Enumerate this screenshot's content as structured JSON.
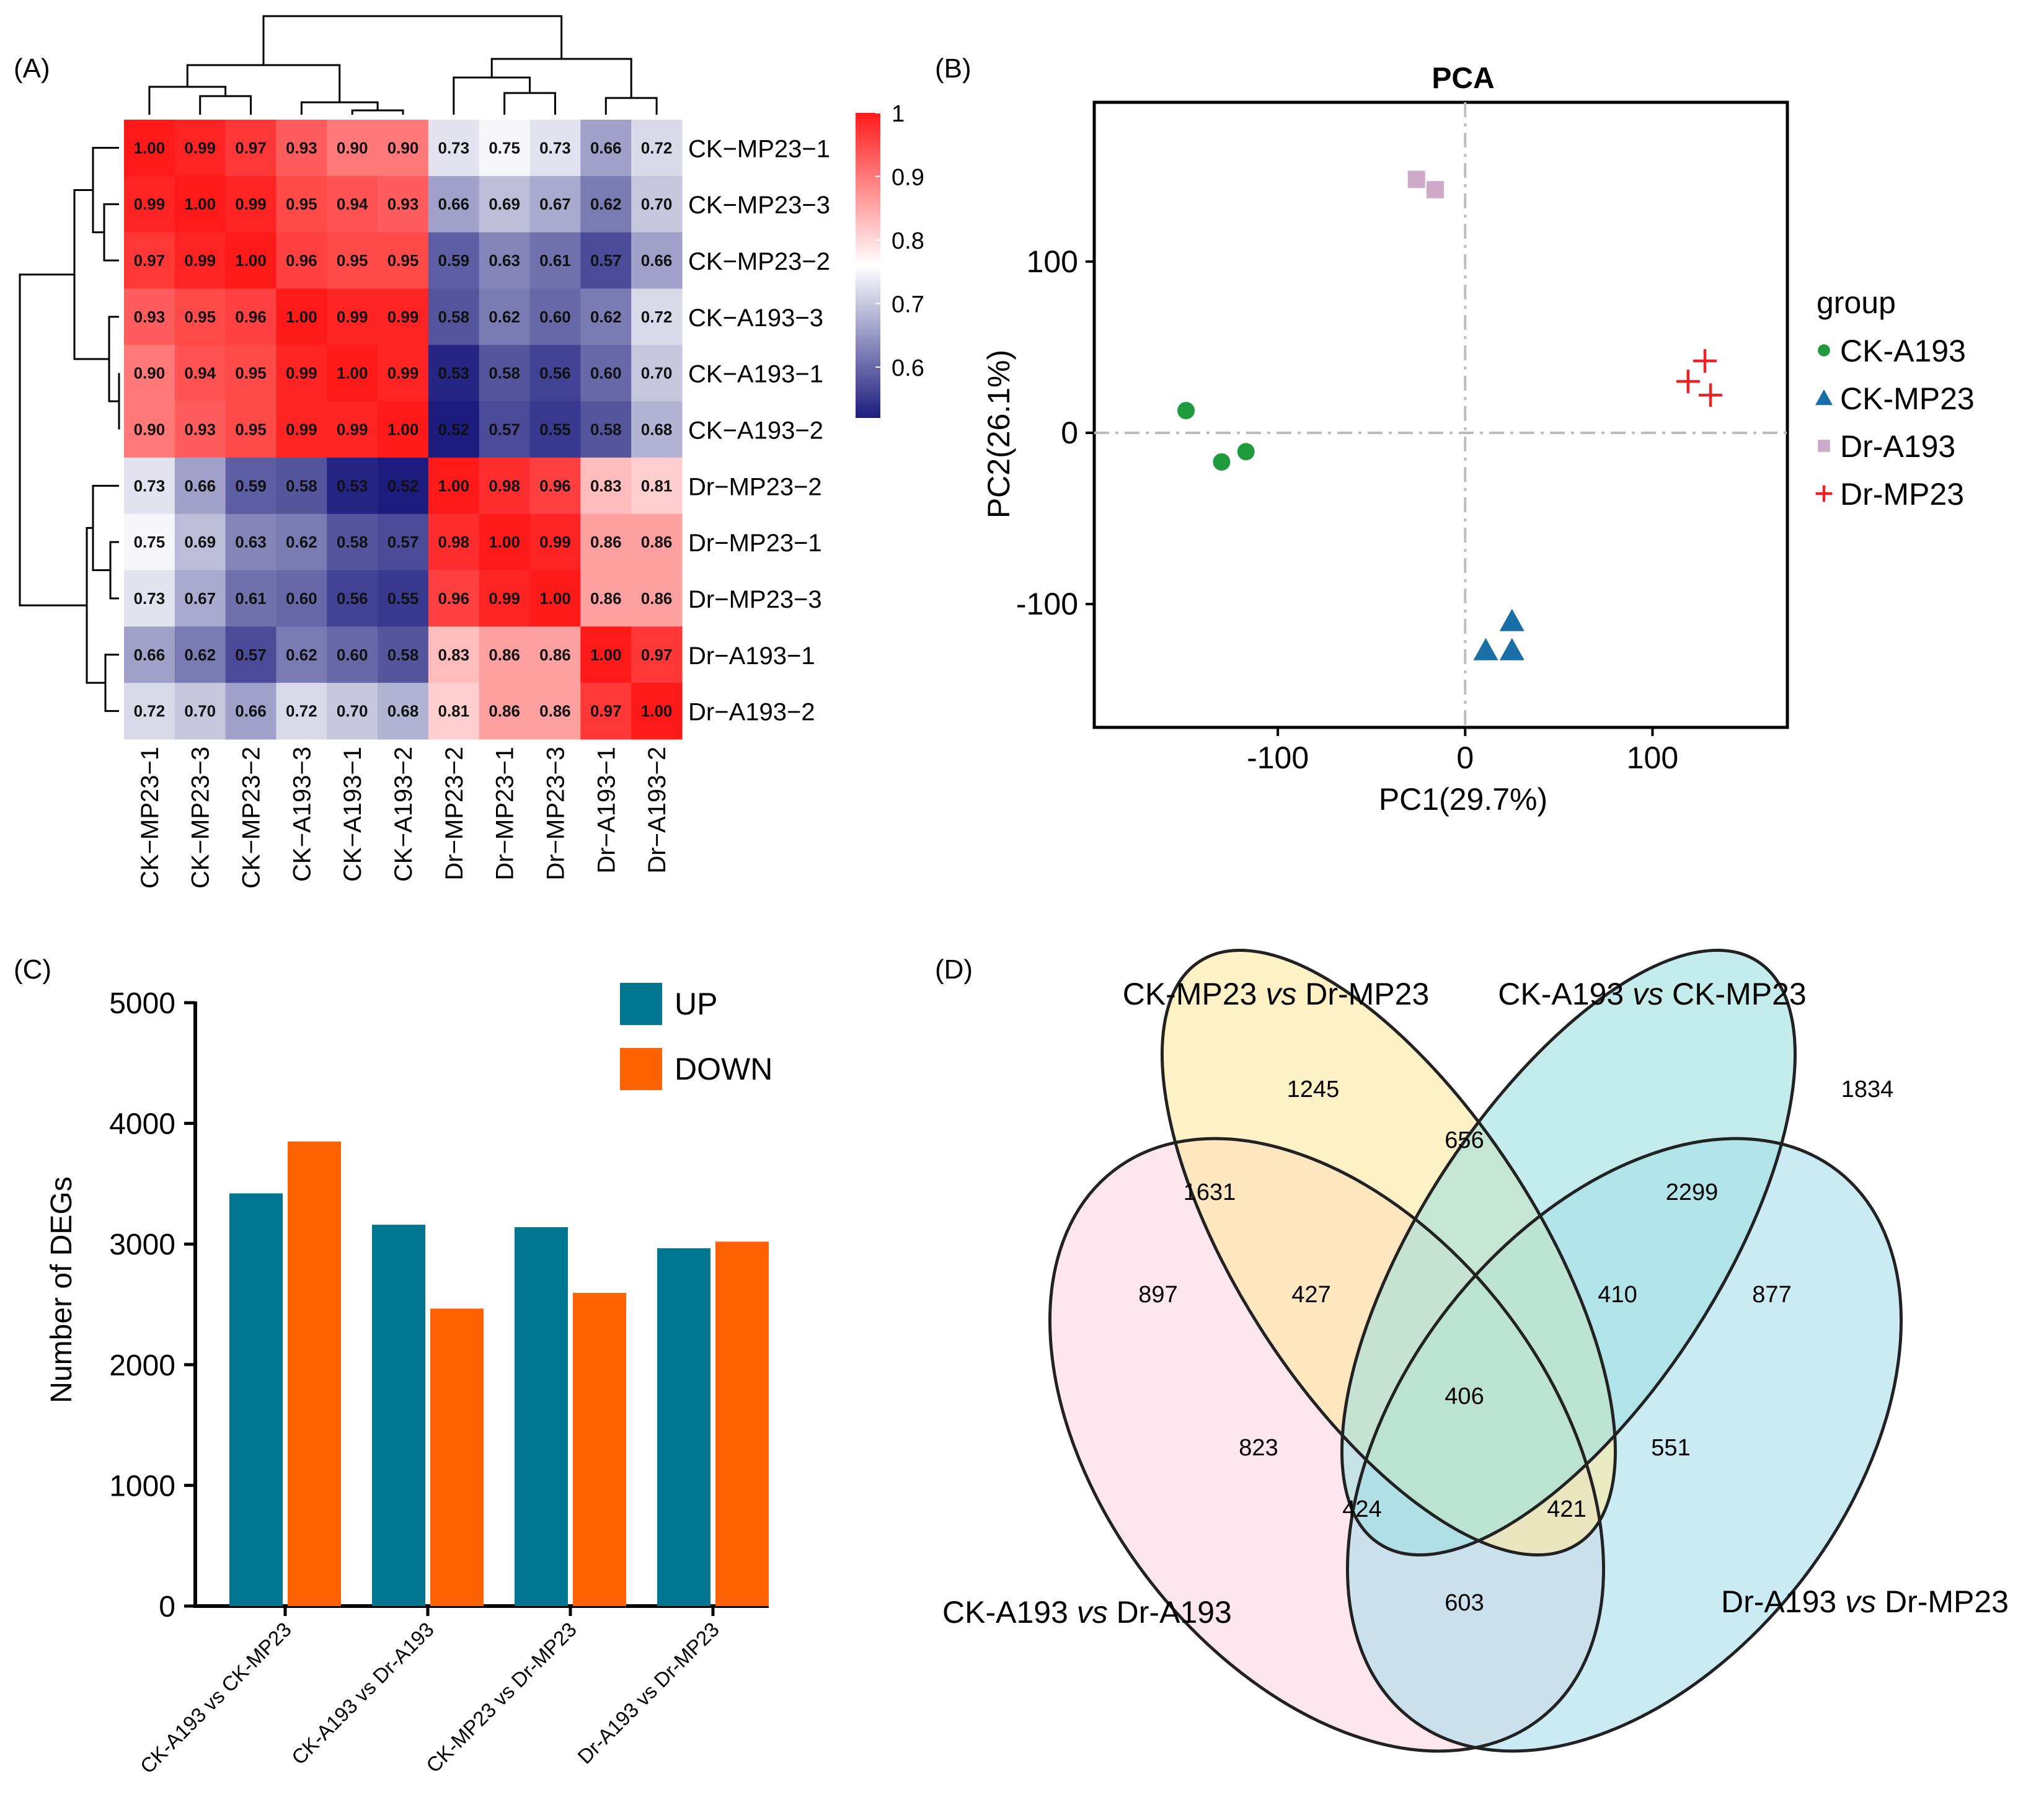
{
  "panel_labels": {
    "a": "(A)",
    "b": "(B)",
    "c": "(C)",
    "d": "(D)"
  },
  "chart_data": [
    {
      "type": "heatmap",
      "panel": "(A)",
      "title": "",
      "rows": [
        "CK−MP23−1",
        "CK−MP23−3",
        "CK−MP23−2",
        "CK−A193−3",
        "CK−A193−1",
        "CK−A193−2",
        "Dr−MP23−2",
        "Dr−MP23−1",
        "Dr−MP23−3",
        "Dr−A193−1",
        "Dr−A193−2"
      ],
      "cols": [
        "CK−MP23−1",
        "CK−MP23−3",
        "CK−MP23−2",
        "CK−A193−3",
        "CK−A193−1",
        "CK−A193−2",
        "Dr−MP23−2",
        "Dr−MP23−1",
        "Dr−MP23−3",
        "Dr−A193−1",
        "Dr−A193−2"
      ],
      "values": [
        [
          1.0,
          0.99,
          0.97,
          0.93,
          0.9,
          0.9,
          0.73,
          0.75,
          0.73,
          0.66,
          0.72
        ],
        [
          0.99,
          1.0,
          0.99,
          0.95,
          0.94,
          0.93,
          0.66,
          0.69,
          0.67,
          0.62,
          0.7
        ],
        [
          0.97,
          0.99,
          1.0,
          0.96,
          0.95,
          0.95,
          0.59,
          0.63,
          0.61,
          0.57,
          0.66
        ],
        [
          0.93,
          0.95,
          0.96,
          1.0,
          0.99,
          0.99,
          0.58,
          0.62,
          0.6,
          0.62,
          0.72
        ],
        [
          0.9,
          0.94,
          0.95,
          0.99,
          1.0,
          0.99,
          0.53,
          0.58,
          0.56,
          0.6,
          0.7
        ],
        [
          0.9,
          0.93,
          0.95,
          0.99,
          0.99,
          1.0,
          0.52,
          0.57,
          0.55,
          0.58,
          0.68
        ],
        [
          0.73,
          0.66,
          0.59,
          0.58,
          0.53,
          0.52,
          1.0,
          0.98,
          0.96,
          0.83,
          0.81
        ],
        [
          0.75,
          0.69,
          0.63,
          0.62,
          0.58,
          0.57,
          0.98,
          1.0,
          0.99,
          0.86,
          0.86
        ],
        [
          0.73,
          0.67,
          0.61,
          0.6,
          0.56,
          0.55,
          0.96,
          0.99,
          1.0,
          0.86,
          0.86
        ],
        [
          0.66,
          0.62,
          0.57,
          0.62,
          0.6,
          0.58,
          0.83,
          0.86,
          0.86,
          1.0,
          0.97
        ],
        [
          0.72,
          0.7,
          0.66,
          0.72,
          0.7,
          0.68,
          0.81,
          0.86,
          0.86,
          0.97,
          1.0
        ]
      ],
      "colorbar": {
        "min": 0.52,
        "max": 1.0,
        "ticks": [
          "1",
          "0.9",
          "0.8",
          "0.7",
          "0.6"
        ],
        "tick_values": [
          1.0,
          0.9,
          0.8,
          0.7,
          0.6
        ]
      },
      "colors": {
        "low": "#1c1c7e",
        "mid": "#ffffff",
        "high": "#ff1a1a"
      }
    },
    {
      "type": "scatter",
      "panel": "(B)",
      "title": "PCA",
      "xlabel": "PC1(29.7%)",
      "ylabel": "PC2(26.1%)",
      "xlim": [
        -198,
        172
      ],
      "ylim": [
        -172,
        193
      ],
      "xticks": [
        -100,
        0,
        100
      ],
      "yticks": [
        -100,
        0,
        100
      ],
      "xtick_labels": [
        "-100",
        "0",
        "100"
      ],
      "ytick_labels": [
        "-100",
        "0",
        "100"
      ],
      "legend_title": "group",
      "legend_position": "right",
      "series": [
        {
          "name": "CK-A193",
          "color": "#1f9a3c",
          "marker": "circle",
          "points": [
            [
              -149,
              13
            ],
            [
              -130,
              -17
            ],
            [
              -117,
              -11
            ]
          ]
        },
        {
          "name": "CK-MP23",
          "color": "#1a6fa6",
          "marker": "triangle",
          "points": [
            [
              25,
              -110
            ],
            [
              11,
              -127
            ],
            [
              25,
              -127
            ]
          ]
        },
        {
          "name": "Dr-A193",
          "color": "#cfa9c9",
          "marker": "square",
          "points": [
            [
              -26,
              148
            ],
            [
              -16,
              142
            ]
          ]
        },
        {
          "name": "Dr-MP23",
          "color": "#ee2222",
          "marker": "plus",
          "points": [
            [
              128,
              42
            ],
            [
              119,
              30
            ],
            [
              131,
              22
            ]
          ]
        }
      ]
    },
    {
      "type": "bar",
      "panel": "(C)",
      "title": "",
      "xlabel": "",
      "ylabel": "Number of DEGs",
      "ylim": [
        0,
        5000
      ],
      "yticks": [
        "0",
        "1000",
        "2000",
        "3000",
        "4000",
        "5000"
      ],
      "categories": [
        "CK-A193 vs CK-MP23",
        "CK-A193 vs Dr-A193",
        "CK-MP23 vs Dr-MP23",
        "Dr-A193 vs Dr-MP23"
      ],
      "series": [
        {
          "name": "UP",
          "color": "#007690",
          "values": [
            3420,
            3160,
            3140,
            2965
          ]
        },
        {
          "name": "DOWN",
          "color": "#ff6200",
          "values": [
            3850,
            2465,
            2595,
            3020
          ]
        }
      ],
      "legend_position": "top-right"
    },
    {
      "type": "venn",
      "panel": "(D)",
      "sets": [
        {
          "name": "CK-MP23 ",
          "em": "vs",
          "name2": " Dr-MP23",
          "color": "#fde7a0"
        },
        {
          "name": "CK-A193 ",
          "em": "vs",
          "name2": " CK-MP23",
          "color": "#9ee0e0"
        },
        {
          "name": "CK-A193 ",
          "em": "vs",
          "name2": " Dr-A193",
          "color": "#fdd6e2"
        },
        {
          "name": "Dr-A193 ",
          "em": "vs",
          "name2": " Dr-MP23",
          "color": "#a6dcec"
        }
      ],
      "regions": [
        "1245",
        "1834",
        "1631",
        "656",
        "2299",
        "897",
        "427",
        "410",
        "877",
        "406",
        "823",
        "551",
        "424",
        "421",
        "603"
      ]
    }
  ]
}
